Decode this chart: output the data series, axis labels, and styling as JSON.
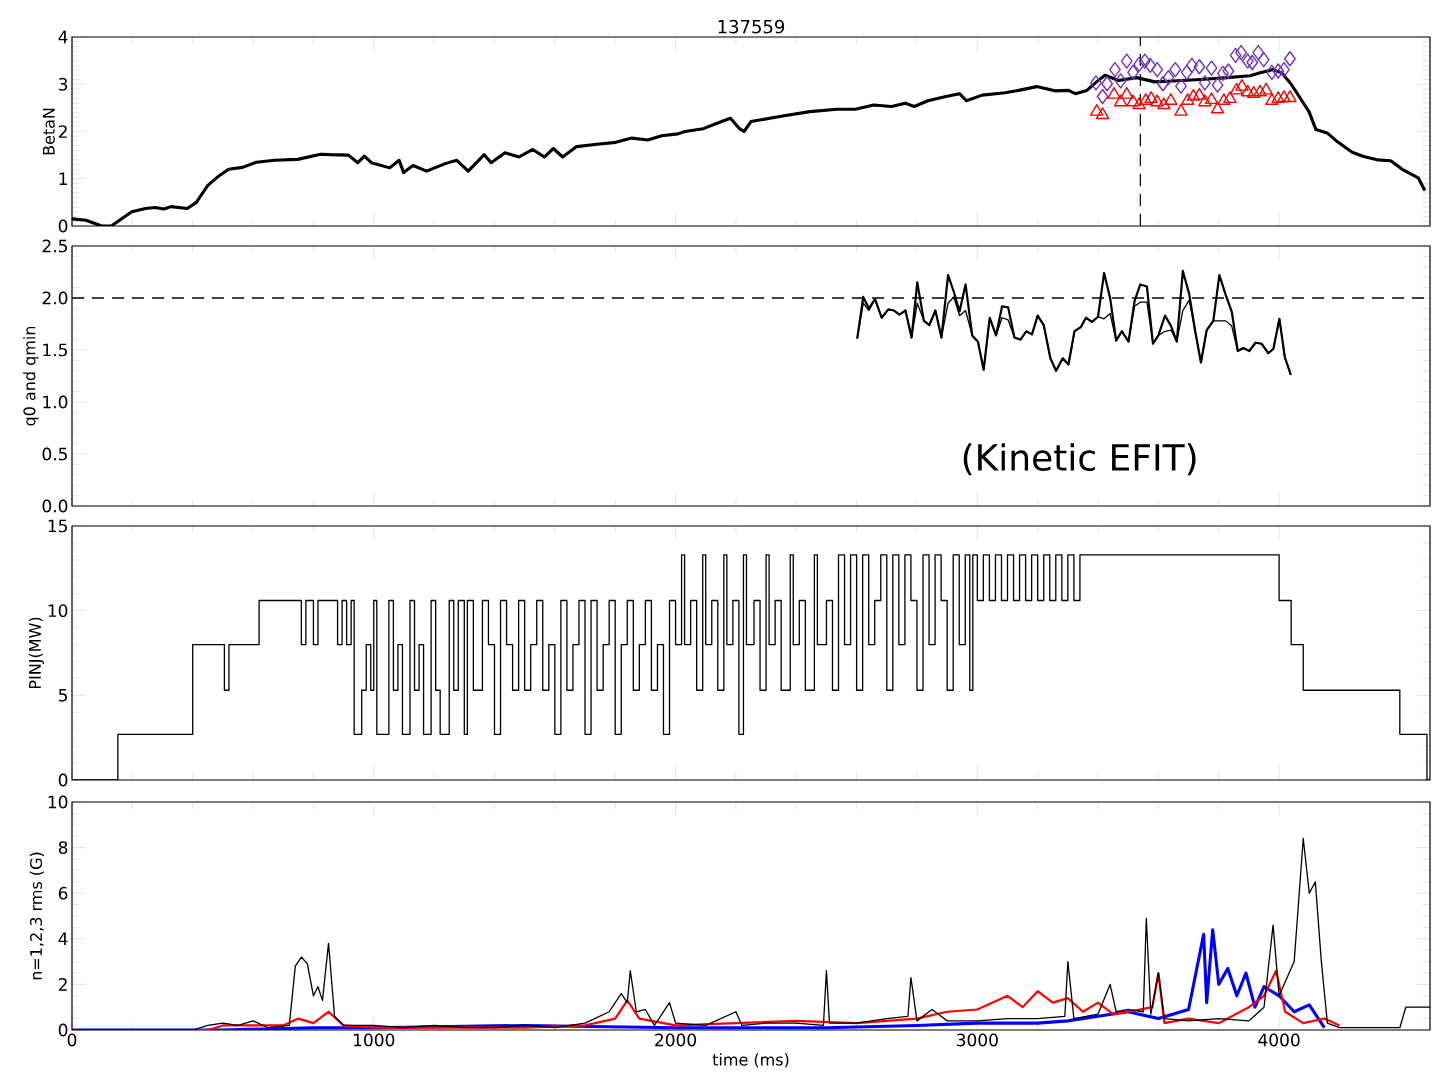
{
  "chart_data": [
    {
      "type": "line",
      "title": "137559",
      "ylabel": "BetaN",
      "xlim": [
        0,
        4500
      ],
      "xticks": [
        0,
        1000,
        2000,
        3000,
        4000
      ],
      "ylim": [
        0,
        4
      ],
      "yticks": [
        0,
        1,
        2,
        3,
        4
      ],
      "tick_labels": "y",
      "ref_lines": [
        {
          "axis": "x",
          "value": 3540,
          "line_style": "dashed",
          "color": "#000000"
        }
      ],
      "series": [
        {
          "type": "line",
          "color": "#000000",
          "x": [
            0,
            46,
            99,
            130,
            198,
            244,
            275,
            305,
            328,
            382,
            412,
            450,
            489,
            519,
            565,
            611,
            672,
            748,
            824,
            855,
            916,
            947,
            969,
            992,
            1053,
            1084,
            1099,
            1130,
            1175,
            1237,
            1275,
            1313,
            1366,
            1389,
            1435,
            1481,
            1527,
            1565,
            1595,
            1626,
            1672,
            1740,
            1802,
            1855,
            1908,
            1954,
            2008,
            2031,
            2092,
            2144,
            2182,
            2212,
            2227,
            2250,
            2355,
            2445,
            2535,
            2596,
            2656,
            2716,
            2761,
            2791,
            2836,
            2896,
            2941,
            2964,
            3016,
            3092,
            3137,
            3197,
            3257,
            3302,
            3325,
            3363,
            3393,
            3423,
            3468,
            3528,
            3588,
            3648,
            3739,
            3829,
            3904,
            3934,
            3979,
            4009,
            4039,
            4099,
            4122,
            4159,
            4190,
            4242,
            4280,
            4325,
            4370,
            4408,
            4461,
            4483
          ],
          "values": [
            0.15,
            0.12,
            0.0,
            0.0,
            0.3,
            0.37,
            0.39,
            0.36,
            0.41,
            0.37,
            0.5,
            0.86,
            1.07,
            1.2,
            1.24,
            1.35,
            1.39,
            1.41,
            1.52,
            1.51,
            1.5,
            1.34,
            1.48,
            1.34,
            1.23,
            1.39,
            1.13,
            1.28,
            1.16,
            1.32,
            1.39,
            1.16,
            1.51,
            1.34,
            1.55,
            1.46,
            1.62,
            1.46,
            1.64,
            1.46,
            1.68,
            1.73,
            1.77,
            1.86,
            1.82,
            1.91,
            1.95,
            2.0,
            2.06,
            2.19,
            2.28,
            2.06,
            2.0,
            2.21,
            2.33,
            2.42,
            2.47,
            2.47,
            2.56,
            2.53,
            2.6,
            2.53,
            2.65,
            2.74,
            2.8,
            2.65,
            2.77,
            2.82,
            2.87,
            2.95,
            2.86,
            2.87,
            2.8,
            2.87,
            3.04,
            3.19,
            3.08,
            3.14,
            3.05,
            3.07,
            3.1,
            3.14,
            3.18,
            3.24,
            3.31,
            3.24,
            3.01,
            2.42,
            2.04,
            1.97,
            1.8,
            1.56,
            1.47,
            1.4,
            1.38,
            1.2,
            1.02,
            0.75
          ]
        },
        {
          "type": "scatter",
          "marker": "diamond",
          "color": "#7030c0",
          "x": [
            3393,
            3415,
            3430,
            3456,
            3475,
            3495,
            3516,
            3536,
            3555,
            3573,
            3596,
            3615,
            3633,
            3656,
            3675,
            3694,
            3711,
            3736,
            3754,
            3776,
            3796,
            3814,
            3832,
            3856,
            3874,
            3896,
            3911,
            3931,
            3949,
            3976,
            3997,
            4016,
            4036
          ],
          "values": [
            3.03,
            2.74,
            3.01,
            3.31,
            3.07,
            3.49,
            3.25,
            3.42,
            3.49,
            3.4,
            3.31,
            3.01,
            3.14,
            3.31,
            2.96,
            3.25,
            3.4,
            3.37,
            3.03,
            3.34,
            2.98,
            3.23,
            3.28,
            3.61,
            3.67,
            3.49,
            3.46,
            3.67,
            3.52,
            3.25,
            3.28,
            3.31,
            3.54
          ]
        },
        {
          "type": "scatter",
          "marker": "triangle",
          "color": "#ff0000",
          "x": [
            3396,
            3415,
            3453,
            3475,
            3495,
            3516,
            3536,
            3558,
            3576,
            3596,
            3618,
            3641,
            3675,
            3697,
            3716,
            3736,
            3754,
            3776,
            3796,
            3817,
            3837,
            3859,
            3877,
            3896,
            3916,
            3937,
            3957,
            3976,
            3997,
            4016,
            4036
          ],
          "values": [
            2.42,
            2.35,
            2.78,
            2.62,
            2.78,
            2.62,
            2.56,
            2.65,
            2.69,
            2.62,
            2.56,
            2.65,
            2.42,
            2.65,
            2.74,
            2.76,
            2.62,
            2.67,
            2.47,
            2.65,
            2.69,
            2.87,
            2.95,
            2.83,
            2.8,
            2.83,
            2.87,
            2.65,
            2.69,
            2.71,
            2.71
          ]
        }
      ]
    },
    {
      "type": "line",
      "ylabel": "q0 and qmin",
      "xlim": [
        0,
        4500
      ],
      "xticks": [
        0,
        1000,
        2000,
        3000,
        4000
      ],
      "ylim": [
        0,
        2.5
      ],
      "yticks": [
        {
          "value": 0,
          "label": "0.0"
        },
        {
          "value": 0.5,
          "label": "0.5"
        },
        {
          "value": 1,
          "label": "1.0"
        },
        {
          "value": 1.5,
          "label": "1.5"
        },
        {
          "value": 2,
          "label": "2.0"
        },
        {
          "value": 2.5,
          "label": "2.5"
        }
      ],
      "tick_labels": "y",
      "ref_lines": [
        {
          "axis": "y",
          "value": 2.0,
          "line_style": "dashed",
          "color": "#000000"
        }
      ],
      "annotations": [
        "(Kinetic EFIT)"
      ],
      "series": [
        {
          "type": "line",
          "color": "#000000",
          "x": [
            2602,
            2622,
            2641,
            2661,
            2683,
            2705,
            2723,
            2742,
            2762,
            2782,
            2801,
            2823,
            2841,
            2861,
            2881,
            2903,
            2922,
            2941,
            2961,
            2983,
            3002,
            3021,
            3041,
            3062,
            3082,
            3102,
            3123,
            3143,
            3162,
            3181,
            3200,
            3220,
            3242,
            3261,
            3283,
            3302,
            3322,
            3343,
            3360,
            3380,
            3400,
            3420,
            3440,
            3460,
            3479,
            3501,
            3521,
            3540,
            3562,
            3582,
            3600,
            3622,
            3642,
            3661,
            3681,
            3702,
            3722,
            3741,
            3760,
            3782,
            3802,
            3823,
            3843,
            3863,
            3882,
            3901,
            3922,
            3942,
            3964,
            3981,
            4001,
            4019,
            4039
          ],
          "values": [
            1.61,
            2.01,
            1.9,
            1.99,
            1.81,
            1.89,
            1.88,
            1.84,
            1.88,
            1.62,
            2.15,
            1.78,
            1.74,
            1.88,
            1.62,
            2.22,
            2.06,
            1.87,
            2.13,
            1.64,
            1.58,
            1.31,
            1.81,
            1.64,
            1.92,
            1.91,
            1.62,
            1.6,
            1.68,
            1.65,
            1.83,
            1.74,
            1.42,
            1.3,
            1.42,
            1.36,
            1.68,
            1.72,
            1.81,
            1.77,
            1.82,
            2.24,
            2.0,
            1.59,
            1.68,
            1.58,
            1.97,
            2.13,
            2.11,
            1.56,
            1.64,
            1.83,
            1.73,
            1.58,
            2.26,
            2.04,
            1.68,
            1.38,
            1.69,
            1.78,
            2.22,
            2.03,
            1.87,
            1.49,
            1.52,
            1.49,
            1.57,
            1.56,
            1.47,
            1.51,
            1.8,
            1.43,
            1.26
          ]
        },
        {
          "type": "line",
          "color": "#000000",
          "x": [
            2602,
            2622,
            2641,
            2661,
            2683,
            2705,
            2723,
            2742,
            2762,
            2782,
            2801,
            2823,
            2841,
            2861,
            2881,
            2903,
            2922,
            2941,
            2961,
            2983,
            3002,
            3021,
            3041,
            3062,
            3082,
            3102,
            3123,
            3143,
            3162,
            3181,
            3200,
            3220,
            3242,
            3261,
            3283,
            3302,
            3322,
            3343,
            3360,
            3380,
            3400,
            3420,
            3440,
            3460,
            3479,
            3501,
            3521,
            3540,
            3562,
            3582,
            3600,
            3622,
            3642,
            3661,
            3681,
            3702,
            3722,
            3741,
            3760,
            3782,
            3802,
            3823,
            3843,
            3863,
            3882,
            3901,
            3922,
            3942,
            3964,
            3981,
            4001,
            4019,
            4039
          ],
          "values": [
            1.61,
            1.95,
            1.88,
            1.99,
            1.81,
            1.89,
            1.88,
            1.84,
            1.88,
            1.62,
            1.95,
            1.78,
            1.74,
            1.88,
            1.62,
            1.95,
            2.01,
            1.83,
            1.88,
            1.64,
            1.58,
            1.31,
            1.81,
            1.64,
            1.81,
            1.79,
            1.62,
            1.6,
            1.68,
            1.65,
            1.83,
            1.74,
            1.42,
            1.3,
            1.42,
            1.36,
            1.68,
            1.72,
            1.81,
            1.77,
            1.82,
            1.8,
            1.85,
            1.59,
            1.68,
            1.58,
            1.92,
            1.96,
            1.96,
            1.56,
            1.64,
            1.68,
            1.69,
            1.58,
            1.88,
            1.98,
            1.68,
            1.38,
            1.69,
            1.78,
            1.78,
            1.78,
            1.73,
            1.49,
            1.52,
            1.49,
            1.57,
            1.56,
            1.47,
            1.51,
            1.8,
            1.43,
            1.26
          ]
        }
      ]
    },
    {
      "type": "step",
      "ylabel": "PINJ(MW)",
      "xlim": [
        0,
        4500
      ],
      "xticks": [
        0,
        1000,
        2000,
        3000,
        4000
      ],
      "ylim": [
        0,
        15
      ],
      "yticks": [
        0,
        5,
        10,
        15
      ],
      "tick_labels": "y",
      "series": [
        {
          "color": "#000000",
          "x": [
            0,
            152,
            400,
            505,
            520,
            620,
            760,
            775,
            800,
            815,
            880,
            895,
            910,
            925,
            935,
            960,
            975,
            990,
            1000,
            1010,
            1050,
            1065,
            1080,
            1095,
            1120,
            1135,
            1150,
            1165,
            1190,
            1205,
            1220,
            1250,
            1265,
            1280,
            1300,
            1310,
            1330,
            1360,
            1380,
            1400,
            1420,
            1440,
            1460,
            1480,
            1500,
            1520,
            1540,
            1560,
            1580,
            1600,
            1620,
            1640,
            1660,
            1680,
            1700,
            1720,
            1740,
            1760,
            1780,
            1800,
            1820,
            1840,
            1860,
            1880,
            1900,
            1920,
            1940,
            1960,
            1980,
            2000,
            2020,
            2030,
            2050,
            2070,
            2090,
            2100,
            2120,
            2140,
            2160,
            2170,
            2190,
            2210,
            2225,
            2235,
            2260,
            2280,
            2300,
            2310,
            2330,
            2350,
            2380,
            2390,
            2410,
            2430,
            2460,
            2470,
            2500,
            2520,
            2540,
            2560,
            2580,
            2600,
            2620,
            2640,
            2660,
            2680,
            2700,
            2720,
            2740,
            2760,
            2780,
            2800,
            2820,
            2840,
            2860,
            2880,
            2900,
            2920,
            2940,
            2960,
            2975,
            2985,
            3000,
            3020,
            3040,
            3060,
            3080,
            3100,
            3120,
            3140,
            3160,
            3180,
            3200,
            3220,
            3240,
            3260,
            3280,
            3300,
            3320,
            3340,
            4000,
            4040,
            4080,
            4400,
            4490,
            4500
          ],
          "values": [
            0,
            2.7,
            8.0,
            5.3,
            8.0,
            10.6,
            8.0,
            10.6,
            8.0,
            10.6,
            8.0,
            10.6,
            8.0,
            10.6,
            2.7,
            5.3,
            8.0,
            5.3,
            10.6,
            2.7,
            10.6,
            5.3,
            8.0,
            2.7,
            10.6,
            5.3,
            8.0,
            2.7,
            10.6,
            5.3,
            2.7,
            10.6,
            5.3,
            10.6,
            2.7,
            10.6,
            5.3,
            10.6,
            8.0,
            2.7,
            10.6,
            8.0,
            5.3,
            10.6,
            5.3,
            8.0,
            10.6,
            5.3,
            8.0,
            2.7,
            10.6,
            5.3,
            8.0,
            10.6,
            2.7,
            10.6,
            5.3,
            8.0,
            10.6,
            2.7,
            8.0,
            10.6,
            5.3,
            8.0,
            10.6,
            5.3,
            8.0,
            2.7,
            10.6,
            8.0,
            13.3,
            8.0,
            10.6,
            5.3,
            13.3,
            8.0,
            10.6,
            5.3,
            13.3,
            8.0,
            10.6,
            2.7,
            13.3,
            8.0,
            10.6,
            5.3,
            13.3,
            8.0,
            10.6,
            5.3,
            13.3,
            8.0,
            10.6,
            5.3,
            13.3,
            8.0,
            10.6,
            5.3,
            13.3,
            8.0,
            13.3,
            5.3,
            13.3,
            8.0,
            10.6,
            13.3,
            5.3,
            13.3,
            8.0,
            13.3,
            10.6,
            5.3,
            13.3,
            8.0,
            13.3,
            10.6,
            5.3,
            13.3,
            8.0,
            13.3,
            5.3,
            13.3,
            10.6,
            13.3,
            10.6,
            13.3,
            10.6,
            13.3,
            10.6,
            13.3,
            10.6,
            13.3,
            10.6,
            13.3,
            10.6,
            13.3,
            10.6,
            13.3,
            10.6,
            13.3,
            10.6,
            8.0,
            5.3,
            2.7,
            0,
            0
          ]
        }
      ]
    },
    {
      "type": "line",
      "xlabel": "time (ms)",
      "ylabel": "n=1,2,3 rms (G)",
      "xlim": [
        0,
        4500
      ],
      "xticks": [
        0,
        1000,
        2000,
        3000,
        4000
      ],
      "ylim": [
        0,
        10
      ],
      "yticks": [
        0,
        2,
        4,
        6,
        8,
        10
      ],
      "series": [
        {
          "color": "#0000ff",
          "x": [
            0,
            500,
            800,
            1000,
            1500,
            2000,
            2500,
            2800,
            3000,
            3200,
            3300,
            3400,
            3500,
            3600,
            3700,
            3750,
            3760,
            3780,
            3800,
            3830,
            3860,
            3890,
            3920,
            3950,
            4000,
            4050,
            4100,
            4150
          ],
          "values": [
            0,
            0,
            0.1,
            0.1,
            0.2,
            0.1,
            0.1,
            0.2,
            0.3,
            0.3,
            0.4,
            0.6,
            0.8,
            0.5,
            0.9,
            4.2,
            1.2,
            4.4,
            2.0,
            2.7,
            1.5,
            2.5,
            1.0,
            1.9,
            1.5,
            0.8,
            1.1,
            0.1
          ]
        },
        {
          "color": "#ff0000",
          "x": [
            0,
            450,
            500,
            700,
            750,
            800,
            850,
            900,
            1000,
            1500,
            1700,
            1800,
            1840,
            1880,
            2000,
            2200,
            2400,
            2600,
            2800,
            2900,
            3000,
            3100,
            3150,
            3200,
            3250,
            3300,
            3350,
            3400,
            3450,
            3500,
            3580,
            3600,
            3620,
            3700,
            3800,
            3900,
            3950,
            3990,
            4020,
            4080,
            4150,
            4200
          ],
          "values": [
            0,
            0,
            0.2,
            0.2,
            0.5,
            0.3,
            0.8,
            0.2,
            0.1,
            0.1,
            0.2,
            0.5,
            1.3,
            0.5,
            0.2,
            0.3,
            0.4,
            0.3,
            0.5,
            0.8,
            0.9,
            1.5,
            1.0,
            1.7,
            1.2,
            1.4,
            0.8,
            1.2,
            0.7,
            0.8,
            1.0,
            2.5,
            0.3,
            0.5,
            0.3,
            1.0,
            1.5,
            2.6,
            0.8,
            0.3,
            0.5,
            0.2
          ]
        },
        {
          "color": "#000000",
          "x": [
            0,
            400,
            450,
            500,
            550,
            600,
            650,
            720,
            740,
            760,
            780,
            800,
            815,
            830,
            850,
            870,
            900,
            1000,
            1100,
            1200,
            1300,
            1400,
            1500,
            1600,
            1700,
            1780,
            1820,
            1840,
            1850,
            1870,
            1900,
            1930,
            1980,
            2000,
            2100,
            2200,
            2220,
            2300,
            2400,
            2490,
            2500,
            2510,
            2600,
            2700,
            2770,
            2780,
            2800,
            2850,
            2900,
            3000,
            3100,
            3200,
            3290,
            3300,
            3320,
            3400,
            3440,
            3460,
            3500,
            3550,
            3560,
            3575,
            3600,
            3620,
            3700,
            3800,
            3900,
            3950,
            3980,
            4000,
            4050,
            4080,
            4100,
            4120,
            4140,
            4160,
            4200,
            4300,
            4400,
            4420,
            4500
          ],
          "values": [
            0,
            0,
            0.2,
            0.3,
            0.2,
            0.4,
            0.1,
            0.2,
            2.8,
            3.2,
            2.9,
            1.5,
            1.9,
            1.3,
            3.8,
            0.6,
            0.2,
            0.2,
            0.1,
            0.2,
            0.1,
            0.1,
            0.2,
            0.1,
            0.3,
            0.8,
            1.6,
            1.2,
            2.6,
            0.8,
            0.9,
            0.2,
            1.2,
            0.3,
            0.2,
            0.8,
            0.2,
            0.3,
            0.3,
            0.2,
            2.6,
            0.3,
            0.3,
            0.5,
            0.6,
            2.3,
            0.4,
            0.9,
            0.4,
            0.4,
            0.5,
            0.5,
            0.6,
            3.0,
            0.5,
            0.7,
            2.0,
            0.8,
            0.9,
            0.8,
            4.9,
            0.7,
            2.5,
            0.5,
            0.4,
            0.5,
            0.4,
            1.0,
            4.6,
            1.5,
            3.0,
            8.4,
            6.0,
            6.5,
            3.0,
            0.3,
            0.1,
            0.1,
            0.1,
            1.0,
            1.0
          ]
        }
      ]
    }
  ]
}
